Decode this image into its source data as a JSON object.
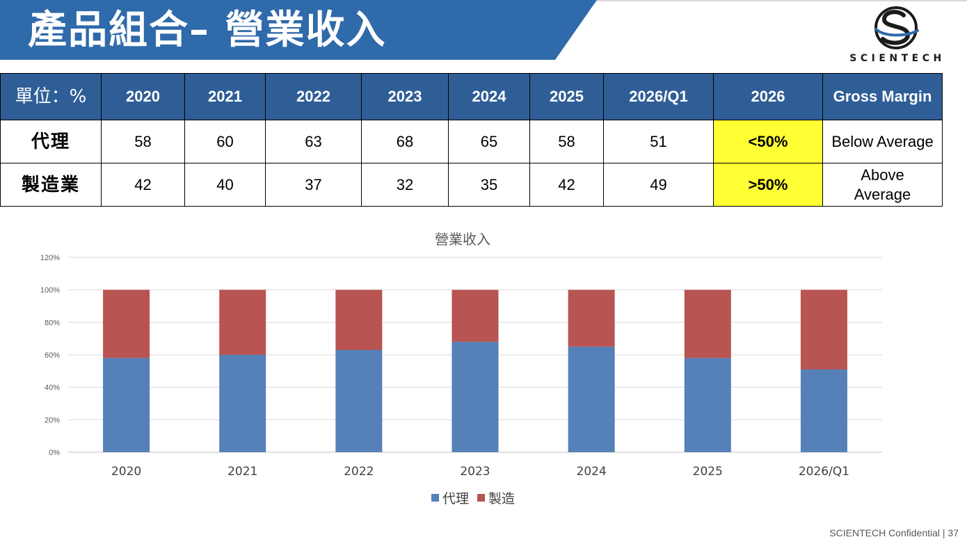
{
  "slide": {
    "title": "產品組合– 營業收入",
    "accent_color": "#2f6aaa",
    "header_color": "#2f5e97",
    "highlight_color": "#ffff33"
  },
  "logo": {
    "text": "SCIENTECH",
    "icon": "scientech-logo-mark"
  },
  "table": {
    "headers": [
      "單位：%",
      "2020",
      "2021",
      "2022",
      "2023",
      "2024",
      "2025",
      "2026/Q1",
      "2026",
      "Gross Margin"
    ],
    "rows": [
      {
        "label": "代理",
        "values": [
          "58",
          "60",
          "63",
          "68",
          "65",
          "58",
          "51"
        ],
        "forecast": "<50%",
        "gross_margin": "Below Average"
      },
      {
        "label": "製造業",
        "values": [
          "42",
          "40",
          "37",
          "32",
          "35",
          "42",
          "49"
        ],
        "forecast": ">50%",
        "gross_margin": "Above Average"
      }
    ]
  },
  "chart_data": {
    "type": "bar",
    "stacked": true,
    "percent_stacked": true,
    "title": "營業收入",
    "categories": [
      "2020",
      "2021",
      "2022",
      "2023",
      "2024",
      "2025",
      "2026/Q1"
    ],
    "series": [
      {
        "name": "代理",
        "values": [
          58,
          60,
          63,
          68,
          65,
          58,
          51
        ],
        "color": "#5580b8"
      },
      {
        "name": "製造",
        "values": [
          42,
          40,
          37,
          32,
          35,
          42,
          49
        ],
        "color": "#b85451"
      }
    ],
    "yticks": [
      "0%",
      "20%",
      "40%",
      "60%",
      "80%",
      "100%",
      "120%"
    ],
    "ylim": [
      0,
      120
    ],
    "grid": true,
    "legend": "bottom"
  },
  "footer": {
    "text": "SCIENTECH Confidential | 37"
  }
}
